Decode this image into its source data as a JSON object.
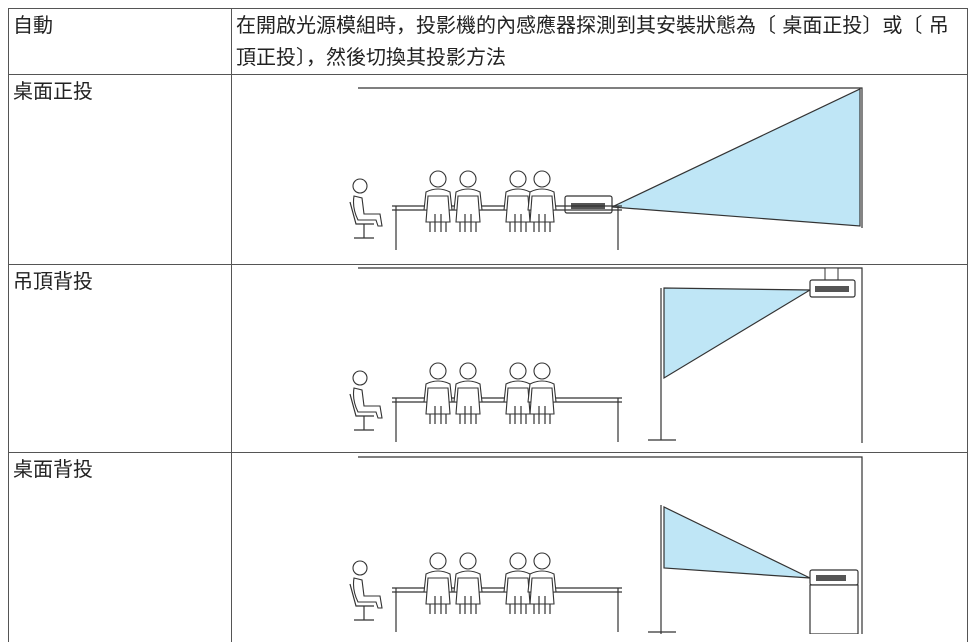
{
  "table": {
    "rows": [
      [
        "自動",
        "在開啟光源模組時，投影機的內感應器探測到其安裝狀態為〔 桌面正投〕或〔 吊頂正投〕，然後切換其投影方法"
      ],
      [
        "桌面正投"
      ],
      [
        "吊頂背投"
      ],
      [
        "桌面背投"
      ]
    ]
  }
}
